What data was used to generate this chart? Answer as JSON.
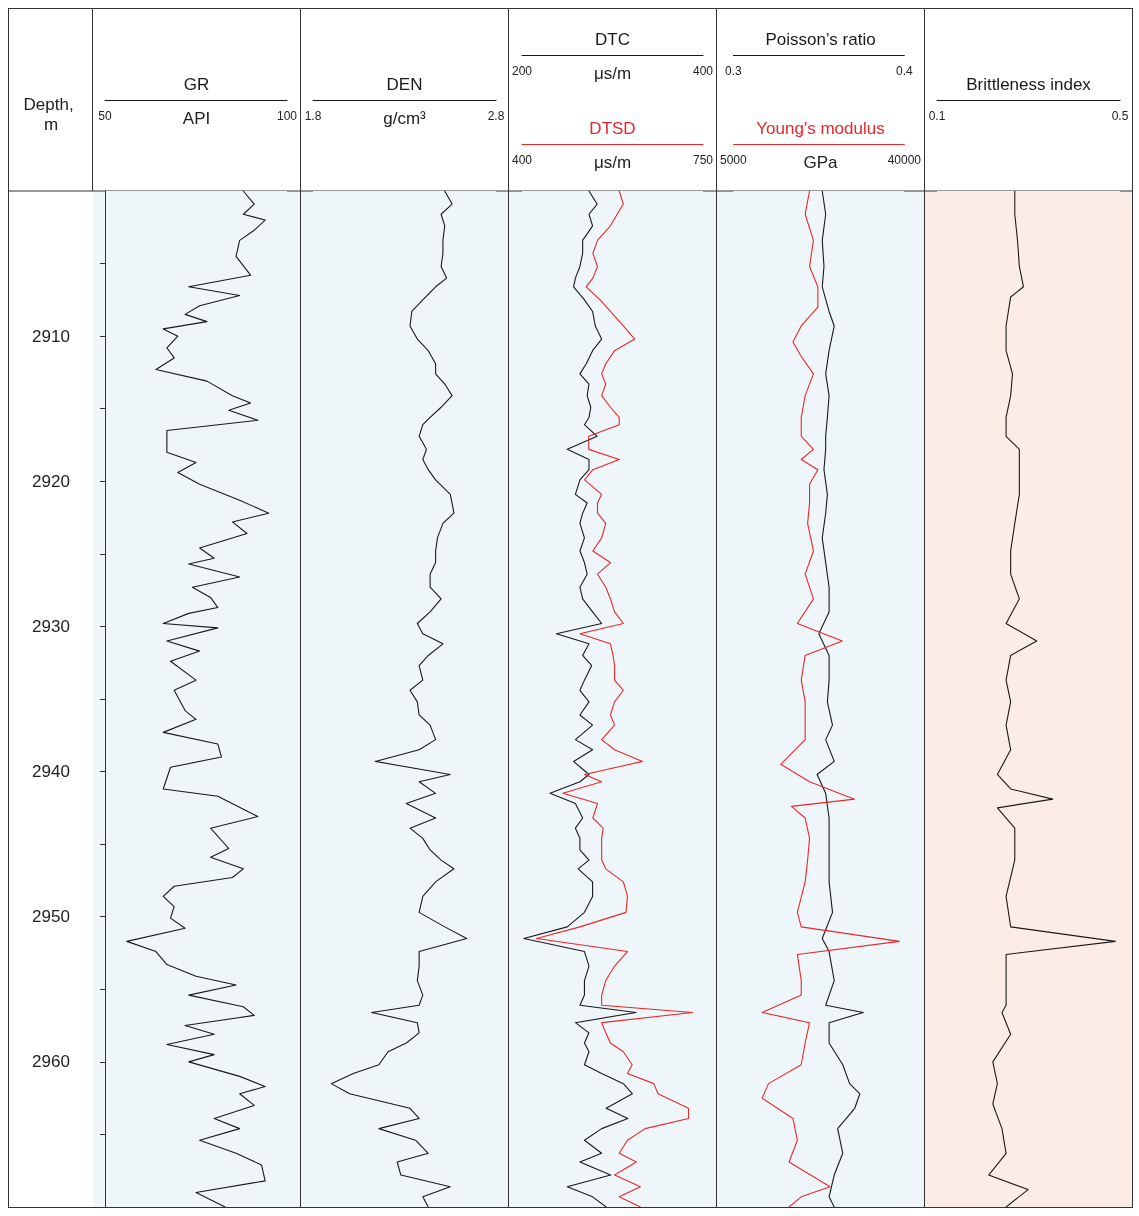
{
  "chart_data": [
    {
      "type": "line",
      "orientation": "horizontal",
      "ylabel": "Depth, m",
      "xlabel": "API",
      "xlim": [
        50,
        100
      ],
      "xticks": [
        50,
        100
      ],
      "ylim": [
        2970,
        2900
      ],
      "yticks": [
        {
          "value": 2905,
          "label": null
        },
        2910,
        {
          "value": 2915,
          "label": null
        },
        2920,
        {
          "value": 2925,
          "label": null
        },
        2930,
        {
          "value": 2935,
          "label": null
        },
        2940,
        {
          "value": 2945,
          "label": null
        },
        2950,
        {
          "value": 2955,
          "label": null
        },
        2960,
        {
          "value": 2965,
          "label": null
        }
      ],
      "marker": "none",
      "bands": [
        {
          "axis": "y",
          "from": 2900,
          "to": 2970,
          "color": "#eef6f9"
        }
      ],
      "series": [
        {
          "name": "GR",
          "color": "#1a1a1a",
          "values": [
            88,
            91,
            88,
            94,
            91,
            87,
            86,
            90,
            73,
            87,
            76,
            72,
            78,
            66,
            70,
            67,
            69,
            64,
            78,
            85,
            90,
            84,
            92,
            67,
            67,
            67,
            75,
            70,
            76,
            87,
            95,
            85,
            89,
            76,
            80,
            73,
            87,
            74,
            79,
            81,
            73,
            66,
            81,
            67,
            76,
            68,
            75,
            69,
            72,
            75,
            66,
            81,
            82,
            68,
            66,
            81,
            92,
            79,
            84,
            79,
            88,
            85,
            69,
            66,
            69,
            68,
            72,
            56,
            64,
            67,
            75,
            86,
            73,
            88,
            91,
            72,
            80,
            67,
            80,
            73,
            87,
            94,
            87,
            91,
            80,
            87,
            76,
            86,
            93,
            94,
            75,
            83
          ],
          "x": [
            2900,
            2900.9,
            2901.6,
            2902,
            2902.7,
            2903.4,
            2904.5,
            2905.8,
            2906.6,
            2907.2,
            2907.9,
            2908.5,
            2909,
            2909.5,
            2910,
            2910.8,
            2911.5,
            2912.3,
            2913.1,
            2914.1,
            2914.6,
            2915.1,
            2915.8,
            2916.5,
            2917.1,
            2918,
            2918.7,
            2919.4,
            2920.2,
            2921.3,
            2922.2,
            2922.8,
            2923.6,
            2924.6,
            2925.3,
            2925.7,
            2926.6,
            2927.3,
            2928,
            2928.7,
            2929.1,
            2929.8,
            2930.1,
            2931,
            2931.7,
            2932.4,
            2933.7,
            2934.4,
            2935.8,
            2936.4,
            2937.3,
            2938.1,
            2939,
            2939.7,
            2941.2,
            2941.7,
            2943.1,
            2943.9,
            2945.3,
            2945.9,
            2946.7,
            2947.3,
            2947.9,
            2948.6,
            2949.3,
            2950.1,
            2950.8,
            2951.7,
            2952.4,
            2953.3,
            2954.1,
            2954.7,
            2955.4,
            2956.2,
            2956.8,
            2957.5,
            2958.1,
            2958.8,
            2959.5,
            2960,
            2961,
            2961.7,
            2962.2,
            2963,
            2963.9,
            2964.6,
            2965.4,
            2966.3,
            2967.1,
            2968.2,
            2969,
            2970
          ]
        }
      ]
    },
    {
      "type": "line",
      "orientation": "horizontal",
      "xlabel": "g/cm³",
      "xlim": [
        1.8,
        2.8
      ],
      "xticks": [
        1.8,
        2.8
      ],
      "ylim": [
        2970,
        2900
      ],
      "tick_labels": "x",
      "marker": "none",
      "bands": [
        {
          "axis": "y",
          "from": 2900,
          "to": 2970,
          "color": "#eef6f9"
        }
      ],
      "series": [
        {
          "name": "DEN",
          "color": "#1a1a1a",
          "values": [
            2.52,
            2.56,
            2.5,
            2.52,
            2.51,
            2.51,
            2.5,
            2.53,
            2.47,
            2.4,
            2.34,
            2.33,
            2.37,
            2.43,
            2.47,
            2.47,
            2.52,
            2.56,
            2.5,
            2.44,
            2.4,
            2.38,
            2.42,
            2.4,
            2.43,
            2.47,
            2.55,
            2.56,
            2.57,
            2.51,
            2.48,
            2.47,
            2.47,
            2.44,
            2.44,
            2.5,
            2.44,
            2.37,
            2.4,
            2.51,
            2.43,
            2.38,
            2.4,
            2.33,
            2.37,
            2.38,
            2.44,
            2.47,
            2.38,
            2.14,
            2.55,
            2.38,
            2.47,
            2.31,
            2.47,
            2.33,
            2.4,
            2.44,
            2.5,
            2.57,
            2.47,
            2.4,
            2.38,
            2.52,
            2.64,
            2.38,
            2.38,
            2.37,
            2.4,
            2.38,
            2.12,
            2.37,
            2.38,
            2.31,
            2.21,
            2.16,
            2.02,
            1.9,
            2.0,
            2.33,
            2.38,
            2.16,
            2.36,
            2.43,
            2.26,
            2.28,
            2.55,
            2.4,
            2.43
          ],
          "x": [
            2900,
            2900.9,
            2901.6,
            2902.4,
            2903.4,
            2904.3,
            2905.2,
            2906,
            2906.6,
            2907.5,
            2908.3,
            2909.3,
            2910.2,
            2911,
            2911.9,
            2912.6,
            2913.3,
            2914.1,
            2914.9,
            2915.6,
            2916.1,
            2916.9,
            2917.8,
            2918.5,
            2919.2,
            2919.9,
            2920.9,
            2921.5,
            2922.2,
            2922.9,
            2923.9,
            2924.8,
            2925.6,
            2926.4,
            2927.3,
            2928.1,
            2929,
            2929.8,
            2930.5,
            2931.2,
            2932,
            2932.7,
            2933.7,
            2934.4,
            2935.2,
            2936.1,
            2936.8,
            2937.8,
            2938.5,
            2939.3,
            2940.2,
            2940.7,
            2941.5,
            2942.2,
            2943.2,
            2943.9,
            2944.6,
            2945.4,
            2946.1,
            2946.7,
            2947.6,
            2948.6,
            2949.7,
            2950.7,
            2951.5,
            2952.4,
            2953.4,
            2954.4,
            2955.4,
            2956.1,
            2956.6,
            2957.3,
            2958,
            2958.7,
            2959.3,
            2960.2,
            2960.8,
            2961.5,
            2962.2,
            2963.2,
            2963.9,
            2964.6,
            2965.4,
            2966.3,
            2966.9,
            2967.8,
            2968.6,
            2969.3,
            2970
          ]
        }
      ]
    },
    {
      "type": "line",
      "orientation": "horizontal",
      "xlabel": "μs/m",
      "xlim": [
        200,
        400
      ],
      "xticks": [
        200,
        400
      ],
      "x2label": "μs/m",
      "x2lim": [
        400,
        750
      ],
      "x2ticks": [
        400,
        750
      ],
      "ylim": [
        2970,
        2900
      ],
      "tick_labels": [
        "x",
        "x2"
      ],
      "marker": "none",
      "bands": [
        {
          "axis": "y",
          "from": 2900,
          "to": 2970,
          "color": "#eef6f9"
        }
      ],
      "series": [
        {
          "name": "DTC",
          "color": "#1a1a1a",
          "values": [
            274,
            283,
            274,
            278,
            267,
            267,
            264,
            259,
            257,
            269,
            278,
            281,
            288,
            278,
            271,
            264,
            274,
            272,
            276,
            274,
            269,
            283,
            250,
            274,
            274,
            264,
            259,
            272,
            267,
            264,
            269,
            264,
            269,
            272,
            264,
            267,
            278,
            288,
            238,
            274,
            267,
            277,
            269,
            264,
            274,
            264,
            278,
            259,
            278,
            257,
            274,
            264,
            231,
            259,
            267,
            259,
            264,
            264,
            274,
            262,
            278,
            278,
            269,
            250,
            202,
            269,
            274,
            269,
            269,
            264,
            326,
            259,
            274,
            269,
            274,
            269,
            288,
            312,
            322,
            293,
            317,
            288,
            269,
            288,
            264,
            298,
            250,
            278,
            293
          ],
          "x": [
            2900,
            2900.9,
            2901.6,
            2902.4,
            2903.4,
            2904.3,
            2905.2,
            2906,
            2906.6,
            2907.5,
            2908.3,
            2909.3,
            2910.2,
            2911,
            2911.9,
            2912.6,
            2913.3,
            2914.1,
            2914.9,
            2915.6,
            2916.1,
            2916.9,
            2917.8,
            2918.5,
            2919.2,
            2919.9,
            2920.9,
            2921.5,
            2922.2,
            2922.9,
            2923.9,
            2924.8,
            2925.6,
            2926.4,
            2927.3,
            2928.1,
            2929,
            2929.8,
            2930.5,
            2931.2,
            2932,
            2932.7,
            2933.7,
            2934.4,
            2935.2,
            2936.1,
            2936.8,
            2937.8,
            2938.5,
            2939.3,
            2940.2,
            2940.7,
            2941.5,
            2942.2,
            2943.2,
            2943.9,
            2944.6,
            2945.4,
            2946.1,
            2946.7,
            2947.6,
            2948.6,
            2949.7,
            2950.7,
            2951.5,
            2952.4,
            2953.4,
            2954.4,
            2955.4,
            2956.1,
            2956.6,
            2957.3,
            2958,
            2958.7,
            2959.3,
            2960.2,
            2960.8,
            2961.5,
            2962.2,
            2963.2,
            2963.9,
            2964.6,
            2965.4,
            2966.3,
            2966.9,
            2967.8,
            2968.6,
            2969.3,
            2970
          ]
        },
        {
          "name": "DTSD",
          "color": "#e8282b",
          "axis": "x2",
          "values": [
            588,
            596,
            584,
            571,
            546,
            537,
            546,
            537,
            524,
            551,
            571,
            596,
            618,
            579,
            562,
            554,
            562,
            554,
            571,
            588,
            588,
            529,
            529,
            588,
            537,
            521,
            554,
            546,
            546,
            562,
            554,
            537,
            571,
            546,
            562,
            571,
            579,
            596,
            512,
            571,
            576,
            579,
            579,
            596,
            579,
            571,
            579,
            554,
            579,
            633,
            521,
            554,
            479,
            546,
            537,
            557,
            554,
            554,
            554,
            562,
            596,
            604,
            601,
            512,
            428,
            604,
            579,
            562,
            554,
            554,
            730,
            554,
            562,
            571,
            596,
            613,
            604,
            655,
            663,
            722,
            722,
            638,
            604,
            588,
            621,
            579,
            629,
            588,
            629
          ],
          "x": [
            2900,
            2900.9,
            2901.6,
            2902.4,
            2903.4,
            2904.3,
            2905.2,
            2906,
            2906.6,
            2907.5,
            2908.3,
            2909.3,
            2910.2,
            2911,
            2911.9,
            2912.6,
            2913.3,
            2914.1,
            2914.9,
            2915.6,
            2916.1,
            2916.9,
            2917.8,
            2918.5,
            2919.2,
            2919.9,
            2920.9,
            2921.5,
            2922.2,
            2922.9,
            2923.9,
            2924.8,
            2925.6,
            2926.4,
            2927.3,
            2928.1,
            2929,
            2929.8,
            2930.5,
            2931.2,
            2932,
            2932.7,
            2933.7,
            2934.4,
            2935.2,
            2936.1,
            2936.8,
            2937.8,
            2938.5,
            2939.3,
            2940.2,
            2940.7,
            2941.5,
            2942.2,
            2943.2,
            2943.9,
            2944.6,
            2945.4,
            2946.1,
            2946.7,
            2947.6,
            2948.6,
            2949.7,
            2950.7,
            2951.5,
            2952.4,
            2953.4,
            2954.4,
            2955.4,
            2956.1,
            2956.6,
            2957.3,
            2958,
            2958.7,
            2959.3,
            2960.2,
            2960.8,
            2961.5,
            2962.2,
            2963.2,
            2963.9,
            2964.6,
            2965.4,
            2966.3,
            2966.9,
            2967.8,
            2968.6,
            2969.3,
            2970
          ]
        }
      ]
    },
    {
      "type": "line",
      "orientation": "horizontal",
      "x2label": "GPa",
      "x2lim": [
        5000,
        40000
      ],
      "x2ticks": [
        5000,
        40000
      ],
      "xlim": [
        0.3,
        0.4
      ],
      "xticks": [
        0.3,
        0.4
      ],
      "ylim": [
        2970,
        2900
      ],
      "tick_labels": [
        "x",
        "x2"
      ],
      "marker": "none",
      "bands": [
        {
          "axis": "y",
          "from": 2900,
          "to": 2970,
          "color": "#eef6f9"
        }
      ],
      "series": [
        {
          "name": "Poisson’s ratio",
          "color": "#1a1a1a",
          "values": [
            0.352,
            0.354,
            0.352,
            0.353,
            0.352,
            0.356,
            0.359,
            0.356,
            0.354,
            0.356,
            0.355,
            0.354,
            0.354,
            0.353,
            0.355,
            0.354,
            0.352,
            0.354,
            0.356,
            0.356,
            0.35,
            0.356,
            0.356,
            0.355,
            0.358,
            0.354,
            0.359,
            0.349,
            0.354,
            0.356,
            0.356,
            0.356,
            0.356,
            0.358,
            0.352,
            0.356,
            0.359,
            0.354,
            0.376,
            0.356,
            0.356,
            0.364,
            0.368,
            0.374,
            0.371,
            0.361,
            0.364,
            0.359,
            0.356,
            0.359
          ],
          "x": [
            2900,
            2901.6,
            2903.4,
            2905.2,
            2906.6,
            2908.3,
            2909.3,
            2911,
            2912.6,
            2914.1,
            2915.6,
            2916.9,
            2917.8,
            2919.2,
            2920.9,
            2922.2,
            2923.9,
            2925.6,
            2927.3,
            2929,
            2930.5,
            2932,
            2933.7,
            2935.2,
            2936.8,
            2937.8,
            2939.3,
            2940.2,
            2941.5,
            2943.2,
            2944.6,
            2946.1,
            2947.6,
            2949.7,
            2951.5,
            2952.4,
            2954.4,
            2956.1,
            2956.6,
            2957.3,
            2958.7,
            2960.2,
            2961.5,
            2962.2,
            2963.2,
            2964.6,
            2966.3,
            2967.8,
            2969.3,
            2970
          ]
        },
        {
          "name": "Young's modulus",
          "color": "#e8282b",
          "axis": "x2",
          "values": [
            20600,
            19700,
            21400,
            20600,
            22300,
            22300,
            18900,
            17200,
            18900,
            21400,
            19700,
            18900,
            18900,
            21400,
            18900,
            22300,
            20600,
            20600,
            20200,
            21400,
            19700,
            21400,
            18100,
            27300,
            19700,
            18900,
            19700,
            19700,
            19700,
            14700,
            20600,
            29800,
            16900,
            19700,
            20600,
            20200,
            19700,
            18100,
            18900,
            39000,
            18100,
            18900,
            18900,
            10900,
            20600,
            19700,
            18900,
            12200,
            10900,
            17200,
            18100,
            16400,
            24800,
            18900,
            16400
          ],
          "x": [
            2900,
            2901.6,
            2903.4,
            2905.2,
            2906.6,
            2908,
            2909.3,
            2910.4,
            2911.4,
            2912.6,
            2914.1,
            2915.6,
            2916.9,
            2917.8,
            2918.5,
            2919.2,
            2920.2,
            2921.5,
            2922.9,
            2924.8,
            2926.4,
            2928.1,
            2929.8,
            2931,
            2932,
            2933.7,
            2935.2,
            2936.8,
            2937.8,
            2939.5,
            2940.7,
            2941.9,
            2942.4,
            2943.2,
            2944.6,
            2946.1,
            2947.6,
            2949.7,
            2950.7,
            2951.7,
            2952.6,
            2954.4,
            2955.4,
            2956.6,
            2957.3,
            2958.7,
            2960.2,
            2961.5,
            2962.5,
            2963.9,
            2965.4,
            2966.9,
            2968.6,
            2969.3,
            2970
          ]
        }
      ]
    },
    {
      "type": "line",
      "orientation": "horizontal",
      "xlim": [
        0.1,
        0.5
      ],
      "xticks": [
        0.1,
        0.5
      ],
      "ylim": [
        2970,
        2900
      ],
      "tick_labels": "x",
      "marker": "none",
      "bands": [
        {
          "axis": "y",
          "from": 2900,
          "to": 2970,
          "color": "#fbede6"
        }
      ],
      "series": [
        {
          "name": "Brittleness index",
          "color": "#1a1a1a",
          "values": [
            0.27,
            0.27,
            0.276,
            0.28,
            0.289,
            0.261,
            0.251,
            0.251,
            0.265,
            0.261,
            0.251,
            0.251,
            0.28,
            0.28,
            0.28,
            0.27,
            0.261,
            0.261,
            0.28,
            0.251,
            0.318,
            0.261,
            0.251,
            0.261,
            0.251,
            0.261,
            0.232,
            0.261,
            0.353,
            0.232,
            0.27,
            0.27,
            0.251,
            0.261,
            0.49,
            0.251,
            0.251,
            0.251,
            0.242,
            0.261,
            0.222,
            0.232,
            0.222,
            0.242,
            0.251,
            0.213,
            0.299,
            0.251
          ],
          "x": [
            2900,
            2901.6,
            2903.4,
            2905.2,
            2906.6,
            2907.3,
            2909.3,
            2911,
            2912.6,
            2914.1,
            2915.6,
            2916.9,
            2917.8,
            2919.2,
            2920.9,
            2922.9,
            2924.8,
            2926.4,
            2928.1,
            2929.8,
            2931,
            2932,
            2933.7,
            2935.2,
            2936.8,
            2938.5,
            2940.2,
            2941.2,
            2941.9,
            2942.5,
            2943.9,
            2946.1,
            2948.6,
            2950.7,
            2951.7,
            2952.6,
            2954.4,
            2956.1,
            2956.6,
            2958.1,
            2960,
            2961.5,
            2962.9,
            2964.6,
            2966.3,
            2967.8,
            2968.8,
            2970
          ]
        }
      ]
    }
  ]
}
